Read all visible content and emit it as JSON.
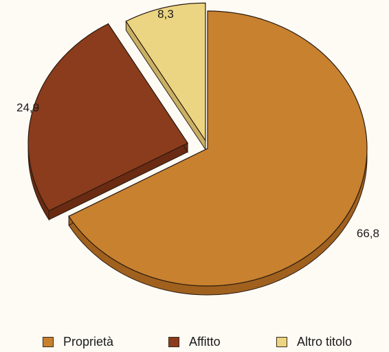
{
  "chart_data": {
    "type": "pie",
    "style": "3d-exploded",
    "categories": [
      "Proprietà",
      "Affitto",
      "Altro titolo"
    ],
    "values": [
      66.8,
      24.9,
      8.3
    ],
    "value_labels": [
      "66,8",
      "24,9",
      "8,3"
    ],
    "colors": [
      "#c8812f",
      "#8b3c1c",
      "#ecd582"
    ],
    "side_colors": [
      "#a0611e",
      "#6a2b12",
      "#c9b063"
    ],
    "legend_position": "bottom"
  }
}
